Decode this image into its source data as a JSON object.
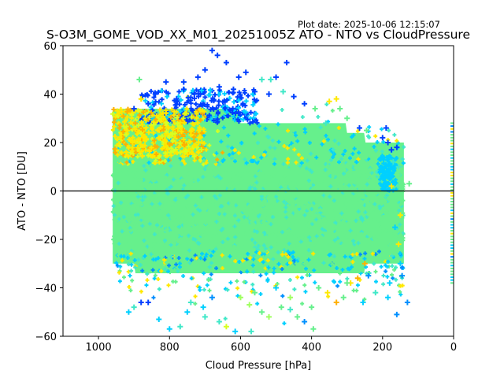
{
  "plot_date": "Plot date: 2025-10-06 12:15:07",
  "title": "S-O3M_GOME_VOD_XX_M01_20251005Z ATO - NTO vs CloudPressure",
  "chart_data": {
    "type": "scatter",
    "title": "S-O3M_GOME_VOD_XX_M01_20251005Z ATO - NTO vs CloudPressure",
    "subtitle": "Plot date: 2025-10-06 12:15:07",
    "xlabel": "Cloud Pressure [hPa]",
    "ylabel": "ATO - NTO [DU]",
    "xlim": [
      1100,
      0
    ],
    "ylim": [
      -60,
      60
    ],
    "x_inverted": true,
    "xticks": [
      1000,
      800,
      600,
      400,
      200,
      0
    ],
    "xtick_labels": [
      "1000",
      "800",
      "600",
      "400",
      "200",
      "0"
    ],
    "yticks": [
      60,
      40,
      20,
      0,
      -20,
      -40,
      -60
    ],
    "ytick_labels": [
      "60",
      "40",
      "20",
      "0",
      "−20",
      "−40",
      "−60"
    ],
    "grid": false,
    "marker": "+",
    "reference_line": {
      "y": 0,
      "color": "#000000"
    },
    "colormap": [
      "#0000e0",
      "#0040ff",
      "#0090ff",
      "#00d0ff",
      "#40e8c8",
      "#66f08c",
      "#a0ff60",
      "#d8ff20",
      "#ffe800",
      "#ffb000"
    ],
    "dominant_color": "#66f08c",
    "bulk": {
      "x_range": [
        140,
        960
      ],
      "y_center": -7,
      "y_core_halfwidth": 20,
      "description": "dense cloud of points spanning roughly 950 to 150 hPa, centred near -7 DU"
    },
    "edge_cluster_x0": {
      "x": 0,
      "y_range": [
        -38,
        28
      ]
    },
    "points": [
      {
        "x": 680,
        "y": 58,
        "c": 1
      },
      {
        "x": 665,
        "y": 56,
        "c": 1
      },
      {
        "x": 640,
        "y": 53,
        "c": 1
      },
      {
        "x": 700,
        "y": 50,
        "c": 1
      },
      {
        "x": 470,
        "y": 53,
        "c": 1
      },
      {
        "x": 585,
        "y": 49,
        "c": 1
      },
      {
        "x": 605,
        "y": 47,
        "c": 1
      },
      {
        "x": 720,
        "y": 47,
        "c": 1
      },
      {
        "x": 810,
        "y": 45,
        "c": 1
      },
      {
        "x": 760,
        "y": 45,
        "c": 1
      },
      {
        "x": 885,
        "y": 46,
        "c": 5
      },
      {
        "x": 540,
        "y": 46,
        "c": 4
      },
      {
        "x": 515,
        "y": 46,
        "c": 4
      },
      {
        "x": 500,
        "y": 47,
        "c": 1
      },
      {
        "x": 760,
        "y": 42,
        "c": 1
      },
      {
        "x": 660,
        "y": 43,
        "c": 1
      },
      {
        "x": 840,
        "y": 40,
        "c": 1
      },
      {
        "x": 860,
        "y": 36,
        "c": 1
      },
      {
        "x": 900,
        "y": 34,
        "c": 1
      },
      {
        "x": 880,
        "y": 38,
        "c": 8
      },
      {
        "x": 780,
        "y": 38,
        "c": 1
      },
      {
        "x": 730,
        "y": 40,
        "c": 1
      },
      {
        "x": 620,
        "y": 42,
        "c": 1
      },
      {
        "x": 560,
        "y": 41,
        "c": 1
      },
      {
        "x": 520,
        "y": 40,
        "c": 1
      },
      {
        "x": 480,
        "y": 41,
        "c": 4
      },
      {
        "x": 450,
        "y": 39,
        "c": 1
      },
      {
        "x": 420,
        "y": 36,
        "c": 1
      },
      {
        "x": 390,
        "y": 34,
        "c": 5
      },
      {
        "x": 350,
        "y": 37,
        "c": 8
      },
      {
        "x": 330,
        "y": 38,
        "c": 8
      },
      {
        "x": 320,
        "y": 34,
        "c": 5
      },
      {
        "x": 300,
        "y": 30,
        "c": 5
      },
      {
        "x": 360,
        "y": 28,
        "c": 4
      },
      {
        "x": 265,
        "y": 26,
        "c": 1
      },
      {
        "x": 245,
        "y": 25,
        "c": 5
      },
      {
        "x": 190,
        "y": 26,
        "c": 1
      },
      {
        "x": 200,
        "y": 22,
        "c": 1
      },
      {
        "x": 185,
        "y": 20,
        "c": 1
      },
      {
        "x": 175,
        "y": 17,
        "c": 1
      },
      {
        "x": 160,
        "y": 18,
        "c": 1
      },
      {
        "x": 170,
        "y": 12,
        "c": 4
      },
      {
        "x": 155,
        "y": 10,
        "c": 4
      },
      {
        "x": 150,
        "y": 2,
        "c": 5
      },
      {
        "x": 125,
        "y": 3,
        "c": 5
      },
      {
        "x": 175,
        "y": 2,
        "c": 8
      },
      {
        "x": 150,
        "y": -10,
        "c": 8
      },
      {
        "x": 165,
        "y": -15,
        "c": 3
      },
      {
        "x": 155,
        "y": -22,
        "c": 8
      },
      {
        "x": 150,
        "y": -30,
        "c": 3
      },
      {
        "x": 145,
        "y": -35,
        "c": 2
      },
      {
        "x": 180,
        "y": -38,
        "c": 3
      },
      {
        "x": 185,
        "y": -44,
        "c": 3
      },
      {
        "x": 130,
        "y": -46,
        "c": 2
      },
      {
        "x": 160,
        "y": -51,
        "c": 2
      },
      {
        "x": 220,
        "y": -42,
        "c": 4
      },
      {
        "x": 255,
        "y": -46,
        "c": 3
      },
      {
        "x": 240,
        "y": -35,
        "c": 2
      },
      {
        "x": 290,
        "y": -38,
        "c": 8
      },
      {
        "x": 330,
        "y": -46,
        "c": 9
      },
      {
        "x": 310,
        "y": -44,
        "c": 5
      },
      {
        "x": 380,
        "y": -40,
        "c": 5
      },
      {
        "x": 400,
        "y": -48,
        "c": 5
      },
      {
        "x": 420,
        "y": -54,
        "c": 2
      },
      {
        "x": 440,
        "y": -52,
        "c": 5
      },
      {
        "x": 395,
        "y": -57,
        "c": 5
      },
      {
        "x": 460,
        "y": -49,
        "c": 4
      },
      {
        "x": 485,
        "y": -48,
        "c": 5
      },
      {
        "x": 520,
        "y": -52,
        "c": 6
      },
      {
        "x": 540,
        "y": -50,
        "c": 5
      },
      {
        "x": 570,
        "y": -58,
        "c": 4
      },
      {
        "x": 575,
        "y": -47,
        "c": 6
      },
      {
        "x": 615,
        "y": -58,
        "c": 3
      },
      {
        "x": 640,
        "y": -56,
        "c": 7
      },
      {
        "x": 660,
        "y": -54,
        "c": 4
      },
      {
        "x": 700,
        "y": -52,
        "c": 4
      },
      {
        "x": 750,
        "y": -50,
        "c": 3
      },
      {
        "x": 770,
        "y": -56,
        "c": 4
      },
      {
        "x": 800,
        "y": -57,
        "c": 3
      },
      {
        "x": 830,
        "y": -53,
        "c": 3
      },
      {
        "x": 860,
        "y": -46,
        "c": 1
      },
      {
        "x": 880,
        "y": -46,
        "c": 1
      },
      {
        "x": 900,
        "y": -48,
        "c": 4
      },
      {
        "x": 915,
        "y": -50,
        "c": 3
      },
      {
        "x": 705,
        "y": -48,
        "c": 3
      },
      {
        "x": 680,
        "y": -44,
        "c": 2
      },
      {
        "x": 740,
        "y": -46,
        "c": 4
      },
      {
        "x": 600,
        "y": -44,
        "c": 6
      },
      {
        "x": 560,
        "y": -42,
        "c": 5
      },
      {
        "x": 500,
        "y": -40,
        "c": 3
      },
      {
        "x": 460,
        "y": -44,
        "c": 6
      },
      {
        "x": 355,
        "y": -42,
        "c": 8
      },
      {
        "x": 270,
        "y": -36,
        "c": 9
      },
      {
        "x": 300,
        "y": -38,
        "c": 5
      },
      {
        "x": 250,
        "y": -30,
        "c": 9
      }
    ]
  }
}
